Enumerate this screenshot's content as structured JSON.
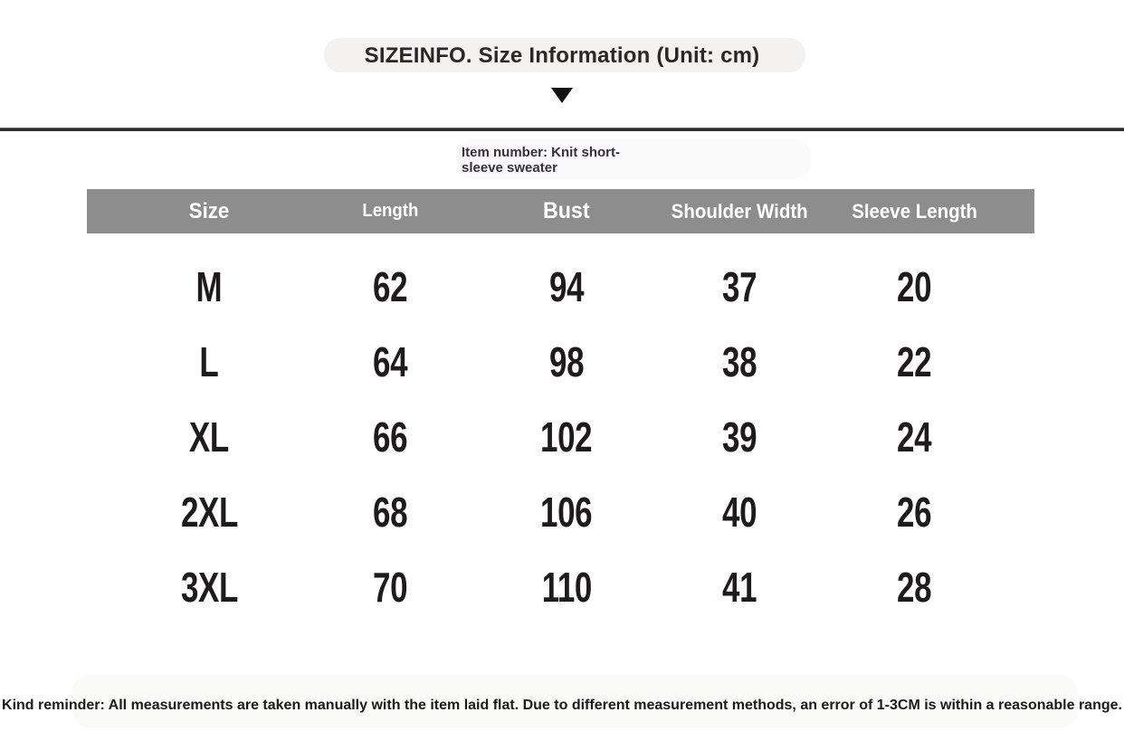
{
  "header": {
    "title": "SIZEINFO. Size Information (Unit: cm)",
    "item_number": "Item number: Knit short-sleeve sweater"
  },
  "table": {
    "unit": "cm",
    "columns": [
      "Size",
      "Length",
      "Bust",
      "Shoulder Width",
      "Sleeve Length"
    ],
    "rows": [
      [
        "M",
        "62",
        "94",
        "37",
        "20"
      ],
      [
        "L",
        "64",
        "98",
        "38",
        "22"
      ],
      [
        "XL",
        "66",
        "102",
        "39",
        "24"
      ],
      [
        "2XL",
        "68",
        "106",
        "40",
        "26"
      ],
      [
        "3XL",
        "70",
        "110",
        "41",
        "28"
      ]
    ]
  },
  "footer": {
    "reminder": "Kind reminder: All measurements are taken manually with the item laid flat. Due to different measurement methods, an error of 1-3CM is within a reasonable range."
  },
  "icons": {
    "down_arrow": "down-triangle-icon"
  },
  "colors": {
    "header_row_bg": "#8d8d8d",
    "header_row_text": "#ffffff",
    "body_text": "#231f20",
    "divider": "#2f2f2f",
    "background": "#ffffff"
  }
}
